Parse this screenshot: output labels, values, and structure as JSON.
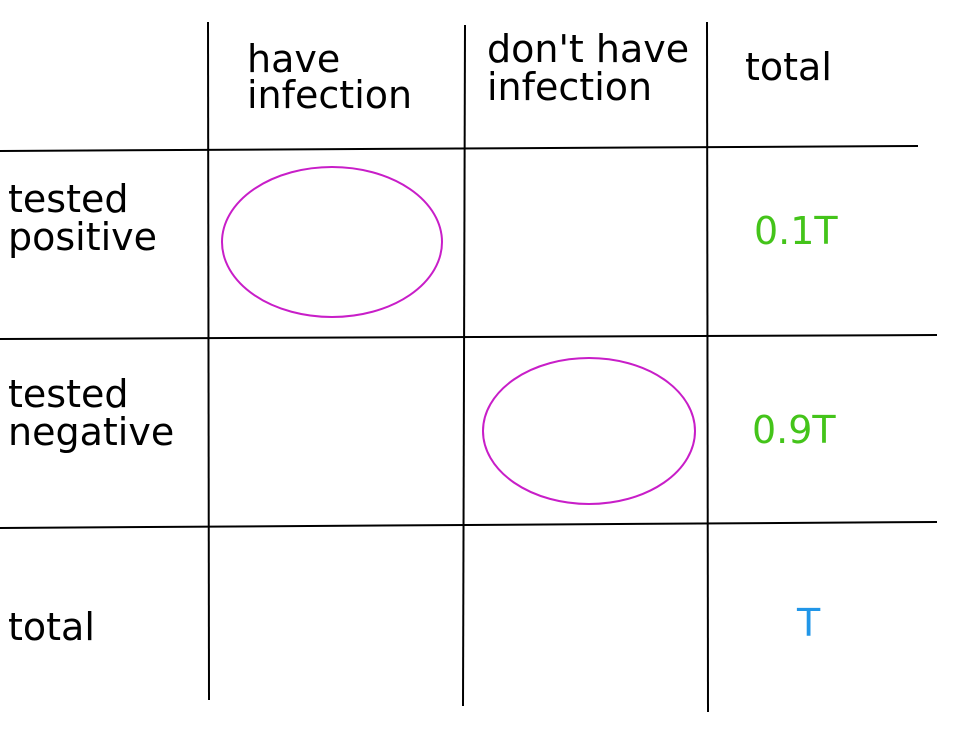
{
  "table": {
    "columns": [
      [
        "have",
        "infection"
      ],
      [
        "don't have",
        "infection"
      ],
      [
        "total"
      ]
    ],
    "rows": [
      {
        "label": [
          "tested",
          "positive"
        ],
        "total": "0.1T"
      },
      {
        "label": [
          "tested",
          "negative"
        ],
        "total": "0.9T"
      },
      {
        "label": [
          "total"
        ],
        "total": "T"
      }
    ]
  }
}
